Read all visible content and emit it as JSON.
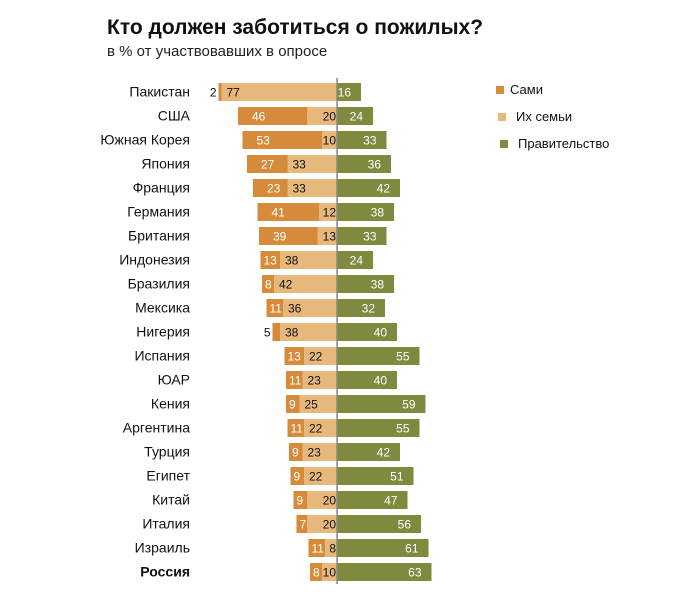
{
  "chart_data": {
    "type": "bar",
    "orientation": "horizontal-diverging",
    "title": "Кто должен заботиться о пожилых?",
    "subtitle": "в % от участвовавших в опросе",
    "categories": [
      "Пакистан",
      "США",
      "Южная Корея",
      "Япония",
      "Франция",
      "Германия",
      "Британия",
      "Индонезия",
      "Бразилия",
      "Мексика",
      "Нигерия",
      "Испания",
      "ЮАР",
      "Кения",
      "Аргентина",
      "Турция",
      "Египет",
      "Китай",
      "Италия",
      "Израиль",
      "Россия"
    ],
    "highlight": "Россия",
    "series": [
      {
        "name": "Сами",
        "color": "#d68b3b",
        "side": "left",
        "values": [
          2,
          46,
          53,
          27,
          23,
          41,
          39,
          13,
          8,
          11,
          5,
          13,
          11,
          9,
          11,
          9,
          9,
          9,
          7,
          11,
          8
        ]
      },
      {
        "name": "Их семьи",
        "color": "#e6b87c",
        "side": "left",
        "values": [
          77,
          20,
          10,
          33,
          33,
          12,
          13,
          38,
          42,
          36,
          38,
          22,
          23,
          25,
          22,
          23,
          22,
          20,
          20,
          8,
          10
        ]
      },
      {
        "name": "Правительство",
        "color": "#7f8a3f",
        "side": "right",
        "values": [
          16,
          24,
          33,
          36,
          42,
          38,
          33,
          24,
          38,
          32,
          40,
          55,
          40,
          59,
          55,
          42,
          51,
          47,
          56,
          61,
          63
        ]
      }
    ],
    "legend_position": "top-right",
    "grid": false
  },
  "colors": {
    "highlight_label": "#ee1111",
    "axis": "#888888"
  }
}
